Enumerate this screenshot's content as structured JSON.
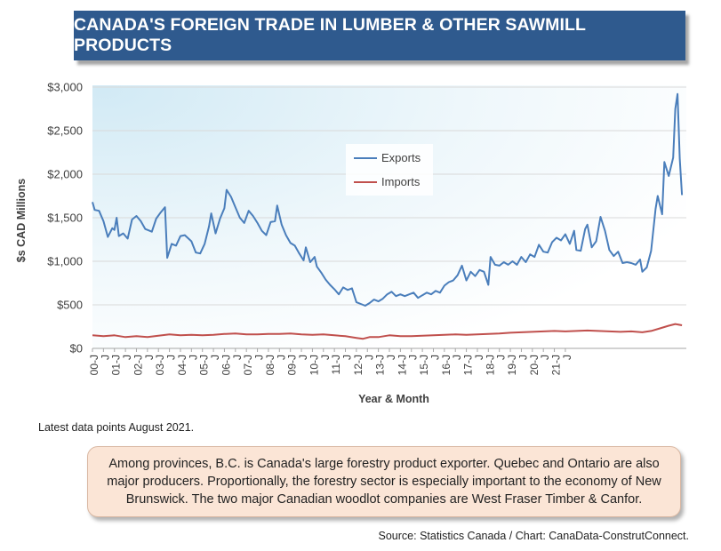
{
  "title": "CANADA'S FOREIGN TRADE IN LUMBER & OTHER SAWMILL PRODUCTS",
  "note": "Latest data points August 2021.",
  "callout": "Among provinces, B.C. is Canada's large forestry product exporter. Quebec and Ontario are also major producers. Proportionally, the forestry sector is especially important to the economy of New Brunswick. The two major Canadian woodlot companies are West Fraser Timber & Canfor.",
  "source": "Source: Statistics Canada / Chart: CanaData-ConstrutConnect.",
  "colors": {
    "exports": "#4a7ebb",
    "imports": "#c0504d",
    "banner": "#2f5a8e"
  },
  "chart_data": {
    "type": "line",
    "title": "CANADA'S FOREIGN TRADE IN LUMBER & OTHER SAWMILL PRODUCTS",
    "xlabel": "Year & Month",
    "ylabel": "$s CAD Millions",
    "ylim": [
      0,
      3000
    ],
    "yticks": [
      0,
      500,
      1000,
      1500,
      2000,
      2500,
      3000
    ],
    "ytick_labels": [
      "$0",
      "$500",
      "$1,000",
      "$1,500",
      "$2,000",
      "$2,500",
      "$3,000"
    ],
    "x_start": "2000-01",
    "x_end": "2021-08",
    "xtick_labels": [
      "00-J",
      "J",
      "01-J",
      "J",
      "02-J",
      "J",
      "03-J",
      "J",
      "04-J",
      "J",
      "05-J",
      "J",
      "06-J",
      "J",
      "07-J",
      "J",
      "08-J",
      "J",
      "09-J",
      "J",
      "10-J",
      "J",
      "11-J",
      "J",
      "12-J",
      "J",
      "13-J",
      "J",
      "14-J",
      "J",
      "15-J",
      "J",
      "16-J",
      "J",
      "17-J",
      "J",
      "18-J",
      "J",
      "19-J",
      "J",
      "20-J",
      "J",
      "21-J",
      "J"
    ],
    "legend": [
      "Exports",
      "Imports"
    ],
    "legend_position": "center",
    "grid": "horizontal",
    "series": [
      {
        "name": "Exports",
        "points": [
          [
            2000.0,
            1680
          ],
          [
            2000.1,
            1590
          ],
          [
            2000.3,
            1580
          ],
          [
            2000.5,
            1460
          ],
          [
            2000.7,
            1280
          ],
          [
            2000.9,
            1380
          ],
          [
            2001.0,
            1360
          ],
          [
            2001.1,
            1500
          ],
          [
            2001.2,
            1290
          ],
          [
            2001.4,
            1320
          ],
          [
            2001.6,
            1260
          ],
          [
            2001.8,
            1480
          ],
          [
            2002.0,
            1520
          ],
          [
            2002.2,
            1460
          ],
          [
            2002.4,
            1370
          ],
          [
            2002.7,
            1340
          ],
          [
            2002.9,
            1490
          ],
          [
            2003.1,
            1560
          ],
          [
            2003.3,
            1620
          ],
          [
            2003.4,
            1040
          ],
          [
            2003.6,
            1200
          ],
          [
            2003.8,
            1180
          ],
          [
            2004.0,
            1290
          ],
          [
            2004.2,
            1300
          ],
          [
            2004.5,
            1230
          ],
          [
            2004.7,
            1100
          ],
          [
            2004.9,
            1090
          ],
          [
            2005.1,
            1200
          ],
          [
            2005.3,
            1400
          ],
          [
            2005.4,
            1550
          ],
          [
            2005.6,
            1320
          ],
          [
            2005.8,
            1490
          ],
          [
            2006.0,
            1610
          ],
          [
            2006.1,
            1820
          ],
          [
            2006.3,
            1740
          ],
          [
            2006.5,
            1620
          ],
          [
            2006.7,
            1500
          ],
          [
            2006.9,
            1440
          ],
          [
            2007.1,
            1580
          ],
          [
            2007.3,
            1520
          ],
          [
            2007.5,
            1440
          ],
          [
            2007.7,
            1350
          ],
          [
            2007.9,
            1300
          ],
          [
            2008.1,
            1450
          ],
          [
            2008.3,
            1460
          ],
          [
            2008.4,
            1640
          ],
          [
            2008.6,
            1420
          ],
          [
            2008.8,
            1300
          ],
          [
            2009.0,
            1210
          ],
          [
            2009.2,
            1180
          ],
          [
            2009.4,
            1090
          ],
          [
            2009.6,
            1010
          ],
          [
            2009.7,
            1160
          ],
          [
            2009.9,
            990
          ],
          [
            2010.1,
            1050
          ],
          [
            2010.2,
            940
          ],
          [
            2010.4,
            870
          ],
          [
            2010.6,
            790
          ],
          [
            2010.8,
            730
          ],
          [
            2011.0,
            680
          ],
          [
            2011.2,
            620
          ],
          [
            2011.4,
            700
          ],
          [
            2011.6,
            670
          ],
          [
            2011.8,
            690
          ],
          [
            2011.9,
            610
          ],
          [
            2012.0,
            530
          ],
          [
            2012.2,
            510
          ],
          [
            2012.4,
            490
          ],
          [
            2012.6,
            520
          ],
          [
            2012.8,
            560
          ],
          [
            2013.0,
            540
          ],
          [
            2013.2,
            570
          ],
          [
            2013.4,
            620
          ],
          [
            2013.6,
            650
          ],
          [
            2013.8,
            600
          ],
          [
            2014.0,
            620
          ],
          [
            2014.2,
            600
          ],
          [
            2014.4,
            620
          ],
          [
            2014.6,
            640
          ],
          [
            2014.8,
            580
          ],
          [
            2015.0,
            610
          ],
          [
            2015.2,
            640
          ],
          [
            2015.4,
            620
          ],
          [
            2015.6,
            660
          ],
          [
            2015.8,
            640
          ],
          [
            2016.0,
            720
          ],
          [
            2016.2,
            760
          ],
          [
            2016.4,
            780
          ],
          [
            2016.6,
            840
          ],
          [
            2016.8,
            950
          ],
          [
            2017.0,
            780
          ],
          [
            2017.2,
            880
          ],
          [
            2017.4,
            830
          ],
          [
            2017.6,
            900
          ],
          [
            2017.8,
            880
          ],
          [
            2018.0,
            730
          ],
          [
            2018.1,
            1050
          ],
          [
            2018.3,
            960
          ],
          [
            2018.5,
            950
          ],
          [
            2018.7,
            990
          ],
          [
            2018.9,
            960
          ],
          [
            2019.1,
            1000
          ],
          [
            2019.3,
            960
          ],
          [
            2019.5,
            1050
          ],
          [
            2019.7,
            990
          ],
          [
            2019.9,
            1080
          ],
          [
            2020.1,
            1050
          ],
          [
            2020.3,
            1190
          ],
          [
            2020.5,
            1110
          ],
          [
            2020.7,
            1100
          ],
          [
            2020.9,
            1220
          ],
          [
            2021.1,
            1270
          ],
          [
            2021.3,
            1240
          ],
          [
            2021.5,
            1310
          ],
          [
            2021.7,
            1200
          ],
          [
            2021.9,
            1350
          ],
          [
            2022.0,
            1130
          ],
          [
            2022.2,
            1120
          ],
          [
            2022.4,
            1370
          ],
          [
            2022.5,
            1420
          ],
          [
            2022.7,
            1160
          ],
          [
            2022.9,
            1230
          ],
          [
            2023.1,
            1510
          ],
          [
            2023.3,
            1350
          ],
          [
            2023.5,
            1130
          ],
          [
            2023.7,
            1060
          ],
          [
            2023.9,
            1110
          ],
          [
            2024.1,
            980
          ],
          [
            2024.3,
            990
          ],
          [
            2024.5,
            980
          ],
          [
            2024.7,
            960
          ],
          [
            2024.9,
            1020
          ],
          [
            2025.0,
            880
          ],
          [
            2025.2,
            930
          ],
          [
            2025.4,
            1120
          ],
          [
            2025.6,
            1600
          ],
          [
            2025.7,
            1750
          ],
          [
            2025.9,
            1540
          ],
          [
            2026.0,
            2140
          ],
          [
            2026.2,
            1980
          ],
          [
            2026.4,
            2190
          ],
          [
            2026.5,
            2750
          ],
          [
            2026.6,
            2920
          ],
          [
            2026.7,
            2180
          ],
          [
            2026.8,
            1760
          ]
        ]
      },
      {
        "name": "Imports",
        "points": [
          [
            2000.0,
            150
          ],
          [
            2000.5,
            140
          ],
          [
            2001.0,
            150
          ],
          [
            2001.5,
            130
          ],
          [
            2002.0,
            140
          ],
          [
            2002.5,
            130
          ],
          [
            2003.0,
            145
          ],
          [
            2003.5,
            160
          ],
          [
            2004.0,
            150
          ],
          [
            2004.5,
            155
          ],
          [
            2005.0,
            150
          ],
          [
            2005.5,
            155
          ],
          [
            2006.0,
            165
          ],
          [
            2006.5,
            170
          ],
          [
            2007.0,
            160
          ],
          [
            2007.5,
            160
          ],
          [
            2008.0,
            165
          ],
          [
            2008.5,
            165
          ],
          [
            2009.0,
            170
          ],
          [
            2009.5,
            160
          ],
          [
            2010.0,
            155
          ],
          [
            2010.5,
            160
          ],
          [
            2011.0,
            150
          ],
          [
            2011.5,
            140
          ],
          [
            2012.0,
            120
          ],
          [
            2012.3,
            110
          ],
          [
            2012.6,
            130
          ],
          [
            2013.0,
            130
          ],
          [
            2013.5,
            150
          ],
          [
            2014.0,
            140
          ],
          [
            2014.5,
            140
          ],
          [
            2015.0,
            145
          ],
          [
            2015.5,
            150
          ],
          [
            2016.0,
            155
          ],
          [
            2016.5,
            160
          ],
          [
            2017.0,
            155
          ],
          [
            2017.5,
            160
          ],
          [
            2018.0,
            165
          ],
          [
            2018.5,
            170
          ],
          [
            2019.0,
            180
          ],
          [
            2019.5,
            185
          ],
          [
            2020.0,
            190
          ],
          [
            2020.5,
            195
          ],
          [
            2021.0,
            200
          ],
          [
            2021.5,
            195
          ],
          [
            2022.0,
            200
          ],
          [
            2022.5,
            205
          ],
          [
            2023.0,
            200
          ],
          [
            2023.5,
            195
          ],
          [
            2024.0,
            190
          ],
          [
            2024.5,
            195
          ],
          [
            2025.0,
            185
          ],
          [
            2025.4,
            200
          ],
          [
            2025.8,
            230
          ],
          [
            2026.2,
            260
          ],
          [
            2026.5,
            280
          ],
          [
            2026.8,
            265
          ]
        ]
      }
    ]
  }
}
